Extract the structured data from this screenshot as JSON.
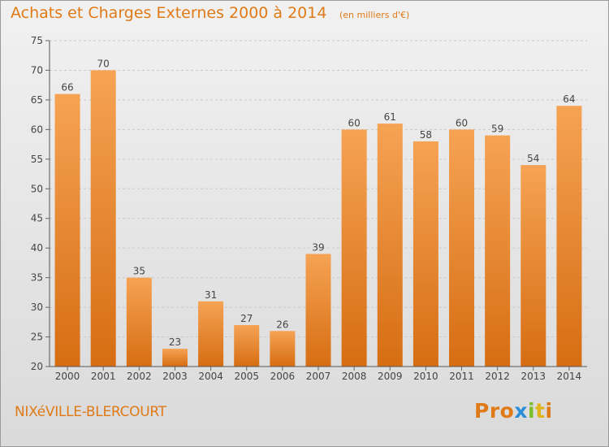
{
  "header": {
    "title": "Achats et Charges Externes 2000 à 2014",
    "unit": "(en milliers d'€)"
  },
  "footer": {
    "commune": "NIXéVILLE-BLERCOURT",
    "brand": "Proxiti"
  },
  "colors": {
    "accent": "#e07a17",
    "bar_top": "#f6a354",
    "bar_bottom": "#d66d12",
    "brand_letters": [
      "#e07a17",
      "#2a8fd8",
      "#7bbf2a",
      "#e0b31a"
    ]
  },
  "chart_data": {
    "type": "bar",
    "title": "Achats et Charges Externes 2000 à 2014",
    "subtitle": "(en milliers d'€)",
    "categories": [
      "2000",
      "2001",
      "2002",
      "2003",
      "2004",
      "2005",
      "2006",
      "2007",
      "2008",
      "2009",
      "2010",
      "2011",
      "2012",
      "2013",
      "2014"
    ],
    "values": [
      66,
      70,
      35,
      23,
      31,
      27,
      26,
      39,
      60,
      61,
      58,
      60,
      59,
      54,
      64
    ],
    "ylim": [
      20,
      75
    ],
    "yticks": [
      20,
      25,
      30,
      35,
      40,
      45,
      50,
      55,
      60,
      65,
      70,
      75
    ],
    "grid": true,
    "data_labels": true
  }
}
